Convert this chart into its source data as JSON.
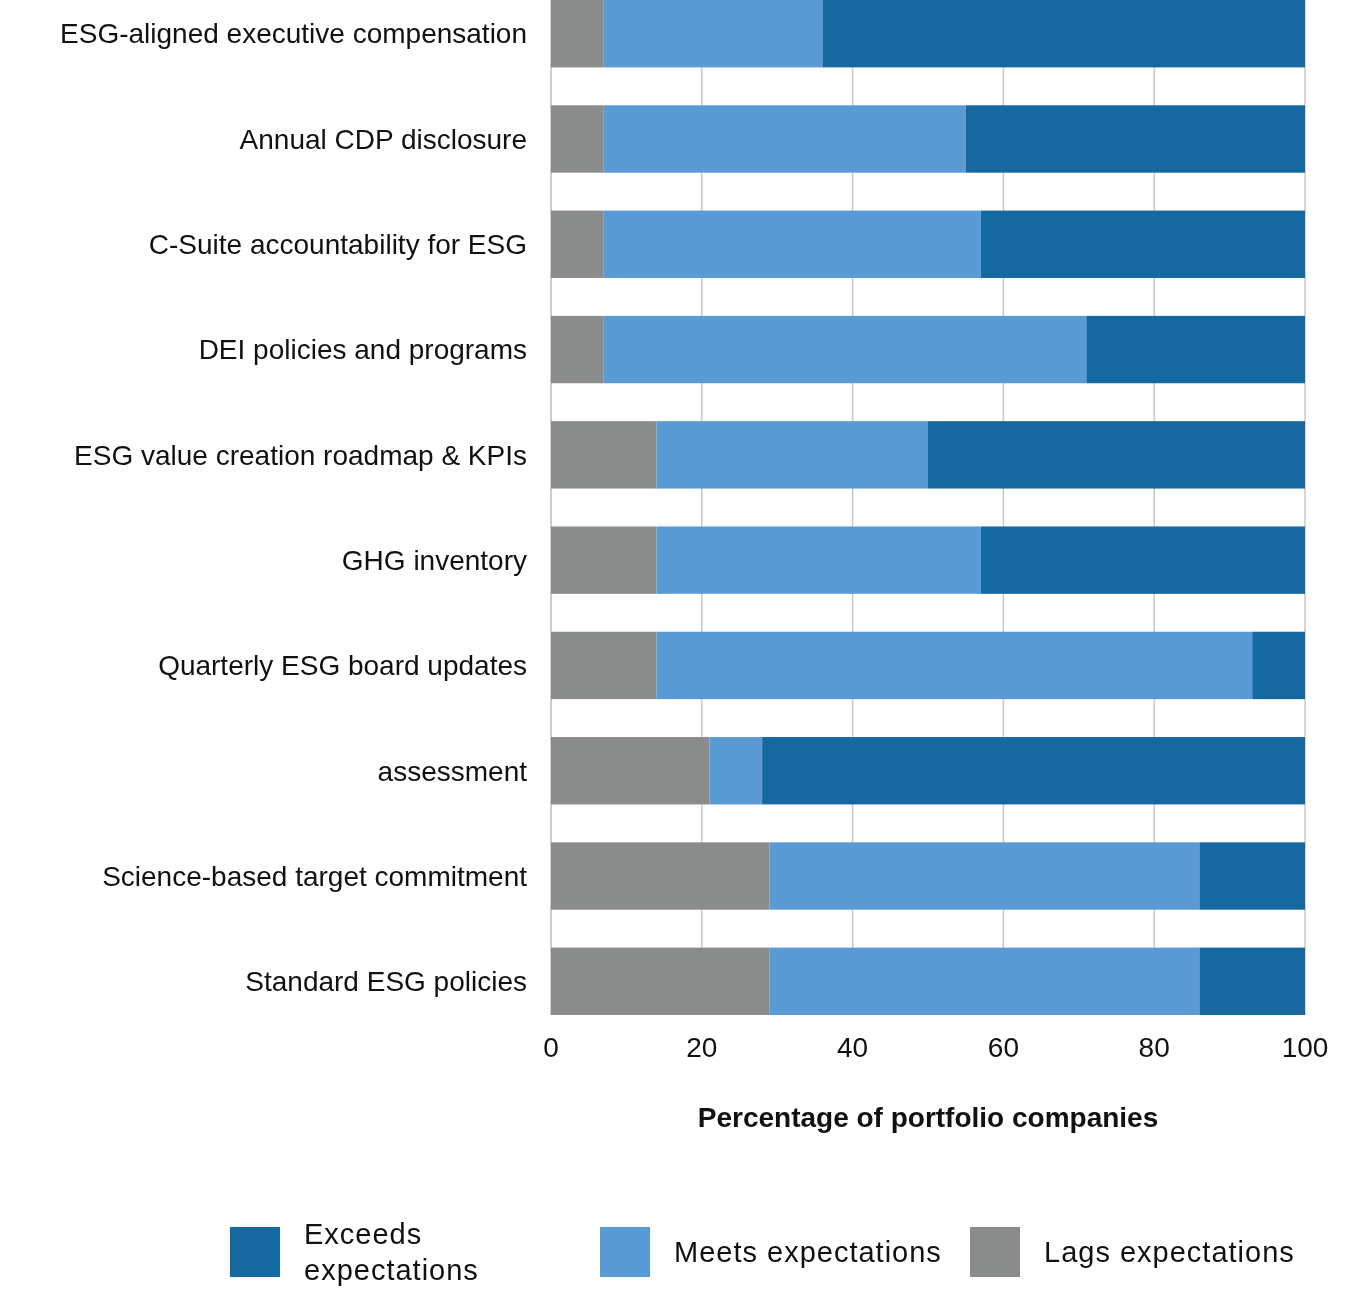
{
  "chart_data": {
    "type": "bar",
    "orientation": "horizontal",
    "stacked": true,
    "xlabel": "Percentage of portfolio companies",
    "categories": [
      "ESG-aligned executive compensation",
      "Annual CDP disclosure",
      "C-Suite accountability for ESG",
      "DEI policies and programs",
      "ESG value creation roadmap & KPIs",
      "GHG inventory",
      "Quarterly ESG board updates",
      "assessment",
      "Science-based target commitment",
      "Standard ESG policies"
    ],
    "series": [
      {
        "name": "Lags expectations",
        "color": "#8a8c8c",
        "values": [
          7,
          7,
          7,
          7,
          14,
          14,
          14,
          21,
          29,
          29
        ]
      },
      {
        "name": "Meets expectations",
        "color": "#5b9bd5",
        "values": [
          29,
          48,
          50,
          64,
          36,
          43,
          79,
          7,
          57,
          57
        ]
      },
      {
        "name": "Exceeds expectations",
        "color": "#1668a1",
        "values": [
          64,
          45,
          43,
          29,
          50,
          43,
          7,
          72,
          14,
          14
        ]
      }
    ],
    "xlim": [
      0,
      100
    ],
    "xticks": [
      0,
      20,
      40,
      60,
      80,
      100
    ],
    "grid": "x",
    "legend": "bottom"
  }
}
